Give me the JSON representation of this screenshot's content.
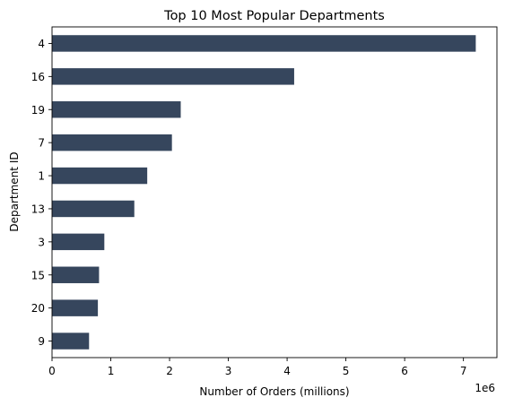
{
  "chart_data": {
    "type": "bar",
    "orientation": "horizontal",
    "title": "Top 10 Most Popular Departments",
    "xlabel": "Number of Orders (millions)",
    "ylabel": "Department ID",
    "x_offset_label": "1e6",
    "categories": [
      "4",
      "16",
      "19",
      "7",
      "1",
      "13",
      "3",
      "15",
      "20",
      "9"
    ],
    "values": [
      7210000,
      4120000,
      2190000,
      2040000,
      1620000,
      1400000,
      890000,
      800000,
      780000,
      630000
    ],
    "xlim": [
      0,
      7570000
    ],
    "xticks": [
      0,
      1000000,
      2000000,
      3000000,
      4000000,
      5000000,
      6000000,
      7000000
    ],
    "xtick_labels": [
      "0",
      "1",
      "2",
      "3",
      "4",
      "5",
      "6",
      "7"
    ],
    "bar_color": "#36465d",
    "grid": false,
    "legend": "none"
  }
}
